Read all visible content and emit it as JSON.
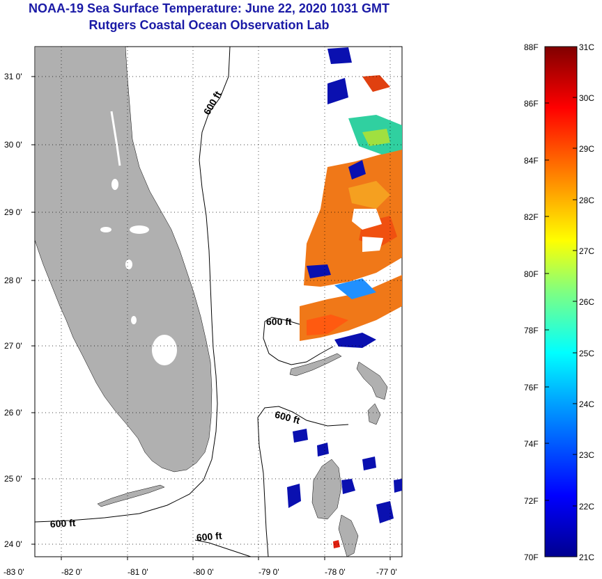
{
  "header": {
    "title": "NOAA-19 Sea Surface Temperature:  June 22, 2020 1031 GMT",
    "subtitle": "Rutgers Coastal Ocean Observation Lab"
  },
  "map": {
    "lon_ticks": [
      "-83 0'",
      "-82 0'",
      "-81 0'",
      "-80 0'",
      "-79 0'",
      "-78 0'",
      "-77 0'"
    ],
    "lat_ticks": [
      "31 0'",
      "30 0'",
      "29 0'",
      "28 0'",
      "27 0'",
      "26 0'",
      "25 0'",
      "24 0'"
    ],
    "contour_labels": [
      "600 ft",
      "600 ft",
      "600 ft",
      "600 ft",
      "600 ft"
    ],
    "land_color": "#b0b0b0"
  },
  "colorbar": {
    "fahrenheit_labels": [
      "88F",
      "86F",
      "84F",
      "82F",
      "80F",
      "78F",
      "76F",
      "74F",
      "72F",
      "70F"
    ],
    "celsius_labels": [
      "31C",
      "30C",
      "29C",
      "28C",
      "27C",
      "26C",
      "25C",
      "24C",
      "23C",
      "22C",
      "21C"
    ],
    "colors": [
      "#00008f",
      "#0000ff",
      "#00a0ff",
      "#00ffff",
      "#80ff80",
      "#ffff00",
      "#ff8000",
      "#ff0000",
      "#800000"
    ]
  }
}
